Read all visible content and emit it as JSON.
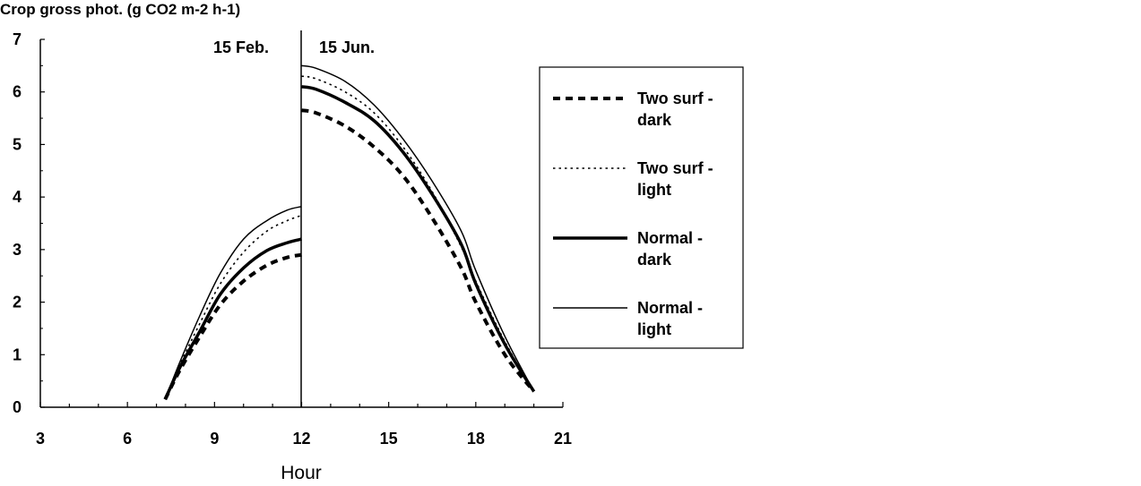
{
  "chart_data": {
    "type": "line",
    "ylabel": "Crop gross phot. (g CO2 m-2 h-1)",
    "xlabel": "Hour",
    "xlim": [
      3,
      21
    ],
    "ylim": [
      0,
      7
    ],
    "x_ticks": [
      "3",
      "6",
      "9",
      "12",
      "15",
      "18",
      "21"
    ],
    "y_ticks": [
      "0",
      "1",
      "2",
      "3",
      "4",
      "5",
      "6",
      "7"
    ],
    "annotations": [
      "15 Feb.",
      "15 Jun."
    ],
    "legend_position": "right",
    "grid": false,
    "series": [
      {
        "name": "Two surf - dark",
        "legend_lines": [
          "Two surf -",
          "dark"
        ],
        "style": "dashed-thick",
        "feb": {
          "x": [
            7.3,
            7.8,
            8.5,
            9.2,
            10.0,
            10.8,
            11.5,
            12.0
          ],
          "y": [
            0.15,
            0.7,
            1.35,
            1.95,
            2.4,
            2.7,
            2.85,
            2.9
          ]
        },
        "jun": {
          "x": [
            12.0,
            12.5,
            13.5,
            14.5,
            15.5,
            16.5,
            17.5,
            18.0,
            19.0,
            20.0
          ],
          "y": [
            5.65,
            5.6,
            5.35,
            4.95,
            4.4,
            3.6,
            2.65,
            2.0,
            1.0,
            0.3
          ]
        }
      },
      {
        "name": "Two surf - light",
        "legend_lines": [
          "Two surf -",
          "light"
        ],
        "style": "dotted",
        "feb": {
          "x": [
            7.3,
            7.8,
            8.5,
            9.2,
            10.0,
            10.8,
            11.5,
            12.0
          ],
          "y": [
            0.15,
            0.8,
            1.6,
            2.35,
            2.95,
            3.35,
            3.55,
            3.65
          ]
        },
        "jun": {
          "x": [
            12.0,
            12.5,
            13.5,
            14.5,
            15.5,
            16.5,
            17.5,
            18.0,
            19.0,
            20.0
          ],
          "y": [
            6.3,
            6.25,
            6.0,
            5.6,
            4.95,
            4.1,
            3.05,
            2.4,
            1.25,
            0.3
          ]
        }
      },
      {
        "name": "Normal - dark",
        "legend_lines": [
          "Normal -",
          "dark"
        ],
        "style": "solid-thick",
        "feb": {
          "x": [
            7.3,
            7.8,
            8.5,
            9.2,
            10.0,
            10.8,
            11.5,
            12.0
          ],
          "y": [
            0.15,
            0.75,
            1.45,
            2.15,
            2.65,
            2.98,
            3.13,
            3.2
          ]
        },
        "jun": {
          "x": [
            12.0,
            12.5,
            13.5,
            14.5,
            15.5,
            16.5,
            17.5,
            18.0,
            19.0,
            20.0
          ],
          "y": [
            6.1,
            6.05,
            5.8,
            5.45,
            4.85,
            4.05,
            3.1,
            2.35,
            1.2,
            0.3
          ]
        }
      },
      {
        "name": "Normal - light",
        "legend_lines": [
          "Normal -",
          "light"
        ],
        "style": "solid-thin",
        "feb": {
          "x": [
            7.3,
            7.8,
            8.5,
            9.2,
            10.0,
            10.8,
            11.5,
            12.0
          ],
          "y": [
            0.15,
            0.85,
            1.75,
            2.55,
            3.2,
            3.55,
            3.75,
            3.82
          ]
        },
        "jun": {
          "x": [
            12.0,
            12.5,
            13.5,
            14.5,
            15.5,
            16.5,
            17.5,
            18.0,
            19.0,
            20.0
          ],
          "y": [
            6.5,
            6.45,
            6.2,
            5.75,
            5.1,
            4.3,
            3.35,
            2.6,
            1.35,
            0.3
          ]
        }
      }
    ]
  }
}
